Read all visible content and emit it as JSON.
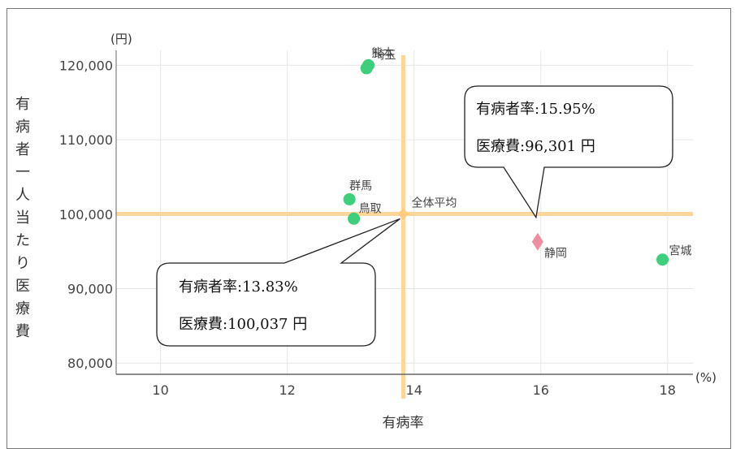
{
  "chart_data": {
    "type": "scatter",
    "title": "",
    "xlabel": "有病率",
    "ylabel": "有病者一人当たり医療費",
    "x_unit": "(%)",
    "y_unit": "(円)",
    "xlim": [
      9.3,
      18.4
    ],
    "ylim": [
      78500,
      122000
    ],
    "x_ticks": [
      10,
      12,
      14,
      16,
      18
    ],
    "y_ticks": [
      80000,
      90000,
      100000,
      110000,
      120000
    ],
    "y_tick_labels": [
      "80,000",
      "90,000",
      "100,000",
      "110,000",
      "120,000"
    ],
    "grid": true,
    "average": {
      "label": "全体平均",
      "x": 13.83,
      "y": 100037
    },
    "points": [
      {
        "label": "熊本",
        "x": 13.25,
        "y": 119600,
        "marker": "circle",
        "color": "#3ecf7c"
      },
      {
        "label": "埼玉",
        "x": 13.28,
        "y": 120000,
        "marker": "circle",
        "color": "#3ecf7c"
      },
      {
        "label": "群馬",
        "x": 12.98,
        "y": 102000,
        "marker": "circle",
        "color": "#3ecf7c"
      },
      {
        "label": "鳥取",
        "x": 13.05,
        "y": 99400,
        "marker": "circle",
        "color": "#3ecf7c"
      },
      {
        "label": "静岡",
        "x": 15.95,
        "y": 96301,
        "marker": "diamond",
        "color": "#ef8ea2"
      },
      {
        "label": "宮城",
        "x": 17.92,
        "y": 93900,
        "marker": "circle",
        "color": "#3ecf7c"
      }
    ],
    "colors": {
      "average_lines": "#ffd699",
      "average_point": "#ffcc80",
      "grid": "#e6e6e6",
      "axis": "#666666"
    },
    "callouts": [
      {
        "line1": "有病者率:15.95%",
        "line2": "医療費:96,301 円"
      },
      {
        "line1": "有病者率:13.83%",
        "line2": "医療費:100,037 円"
      }
    ]
  }
}
